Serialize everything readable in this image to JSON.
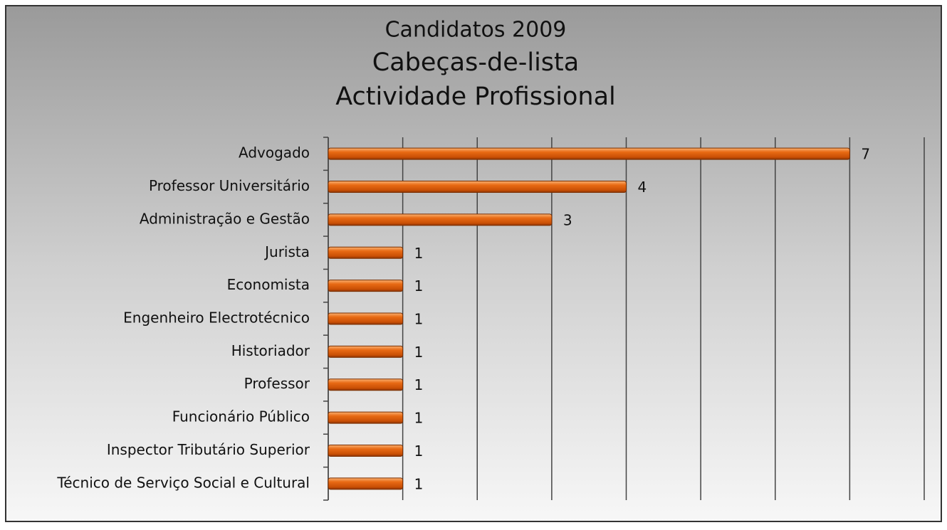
{
  "chart_data": {
    "type": "barh",
    "title": "Candidatos 2009",
    "subtitle": [
      "Cabeças-de-lista",
      "Actividade Profissional"
    ],
    "categories": [
      "Advogado",
      "Professor Universitário",
      "Administração e Gestão",
      "Jurista",
      "Economista",
      "Engenheiro Electrotécnico",
      "Historiador",
      "Professor",
      "Funcionário Público",
      "Inspector Tributário Superior",
      "Técnico de Serviço Social e Cultural"
    ],
    "values": [
      7,
      4,
      3,
      1,
      1,
      1,
      1,
      1,
      1,
      1,
      1
    ],
    "color": "#e0620c",
    "xlim": [
      0,
      8
    ],
    "xticks": [
      0,
      1,
      2,
      3,
      4,
      5,
      6,
      7,
      8
    ],
    "grid": true
  }
}
